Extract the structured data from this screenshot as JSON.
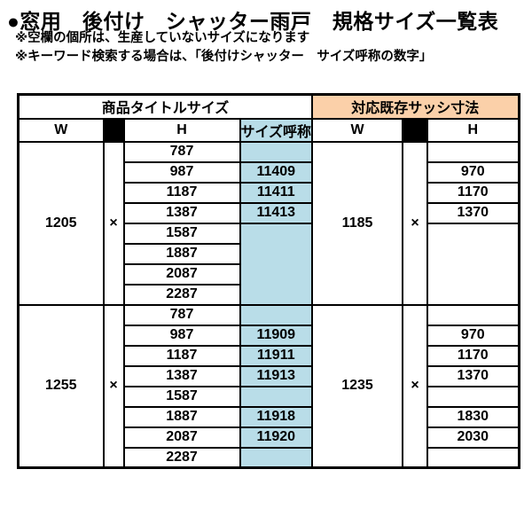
{
  "title": "●窓用　後付け　シャッター雨戸　規格サイズ一覧表",
  "notes": [
    "※空欄の個所は、生産していないサイズになります",
    "※キーワード検索する場合は、「後付けシャッター　サイズ呼称の数字」"
  ],
  "colors": {
    "sash_header_bg": "#FBD0A9",
    "size_name_col_bg": "#B9DDE8",
    "spacer_cell_bg": "#000000"
  },
  "table": {
    "header": {
      "product_section": "商品タイトルサイズ",
      "sash_section": "対応既存サッシ寸法",
      "w": "W",
      "h": "H",
      "size_name": "サイズ呼称",
      "times": "×"
    },
    "groups": [
      {
        "product_w": "1205",
        "sash_w": "1185",
        "h_values": [
          "787",
          "987",
          "1187",
          "1387",
          "1587",
          "1887",
          "2087",
          "2287"
        ],
        "size_values": [
          "",
          "11409",
          "11411",
          "11413",
          "",
          "",
          "",
          ""
        ],
        "sash_h_values": [
          "",
          "970",
          "1170",
          "1370",
          "",
          "",
          "",
          ""
        ],
        "size_merge_tail_from": 4,
        "sash_merge_tail_from": 4
      },
      {
        "product_w": "1255",
        "sash_w": "1235",
        "h_values": [
          "787",
          "987",
          "1187",
          "1387",
          "1587",
          "1887",
          "2087",
          "2287"
        ],
        "size_values": [
          "",
          "11909",
          "11911",
          "11913",
          "",
          "11918",
          "11920",
          ""
        ],
        "sash_h_values": [
          "",
          "970",
          "1170",
          "1370",
          "",
          "1830",
          "2030",
          ""
        ],
        "size_merge_tail_from": null,
        "sash_merge_tail_from": null
      }
    ]
  }
}
